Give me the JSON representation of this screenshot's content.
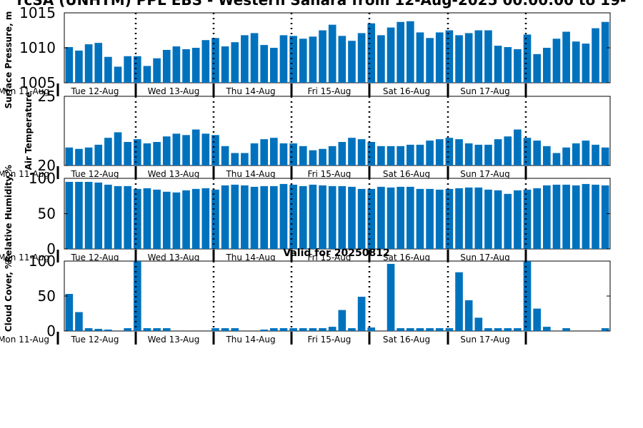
{
  "figure": {
    "title": "rcSA (UNHTM) PPL EBS  - Western Sahara from 12-Aug-2025 00:00:00 to 19-",
    "bottom_label": "Valid for 20250812"
  },
  "colors": {
    "bar": "#0072bd",
    "axis": "#000000"
  },
  "chart_data": [
    {
      "type": "bar",
      "ylabel": "Surface Pressure, m",
      "ylim": [
        1005,
        1015
      ],
      "yticks": [
        1005,
        1010,
        1015
      ],
      "ytick_labels": [
        "1005",
        "1010",
        "1015"
      ],
      "xtick_labels": [
        "Mon 11-Aug",
        "Tue 12-Aug",
        "Wed 13-Aug",
        "Thu 14-Aug",
        "Fri 15-Aug",
        "Sat 16-Aug",
        "Sun 17-Aug"
      ],
      "values": [
        1010.1,
        1009.6,
        1010.5,
        1010.7,
        1008.7,
        1007.3,
        1008.8,
        1008.8,
        1007.4,
        1008.5,
        1009.7,
        1010.2,
        1009.8,
        1010.0,
        1011.1,
        1011.4,
        1010.2,
        1010.8,
        1011.8,
        1012.1,
        1010.4,
        1010.0,
        1011.8,
        1011.7,
        1011.3,
        1011.6,
        1012.5,
        1013.3,
        1011.7,
        1011.0,
        1012.1,
        1013.5,
        1011.8,
        1012.9,
        1013.7,
        1013.8,
        1012.2,
        1011.4,
        1012.2,
        1012.5,
        1011.8,
        1012.1,
        1012.5,
        1012.5,
        1010.3,
        1010.1,
        1009.8,
        1011.9,
        1009.1,
        1010.0,
        1011.3,
        1012.3,
        1010.9,
        1010.6,
        1012.8,
        1013.7
      ]
    },
    {
      "type": "bar",
      "ylabel": "Air Temperature",
      "ylim": [
        20,
        25
      ],
      "yticks": [
        20,
        25
      ],
      "ytick_labels": [
        "20",
        "25"
      ],
      "xtick_labels": [
        "Mon 11-Aug",
        "Tue 12-Aug",
        "Wed 13-Aug",
        "Thu 14-Aug",
        "Fri 15-Aug",
        "Sat 16-Aug",
        "Sun 17-Aug"
      ],
      "values": [
        21.3,
        21.2,
        21.3,
        21.5,
        22.0,
        22.4,
        21.7,
        21.9,
        21.6,
        21.7,
        22.1,
        22.3,
        22.2,
        22.6,
        22.3,
        22.2,
        21.4,
        20.9,
        20.9,
        21.6,
        21.9,
        22.0,
        21.6,
        21.6,
        21.4,
        21.1,
        21.2,
        21.4,
        21.7,
        22.0,
        21.9,
        21.7,
        21.4,
        21.4,
        21.4,
        21.5,
        21.5,
        21.8,
        21.9,
        22.0,
        21.9,
        21.6,
        21.5,
        21.5,
        21.9,
        22.1,
        22.6,
        22.0,
        21.8,
        21.4,
        20.9,
        21.3,
        21.6,
        21.8,
        21.5,
        21.3
      ]
    },
    {
      "type": "bar",
      "ylabel": "Relative Humidity,%",
      "ylim": [
        0,
        100
      ],
      "yticks": [
        0,
        50,
        100
      ],
      "ytick_labels": [
        "0",
        "50",
        "100"
      ],
      "xtick_labels": [
        "Mon 11-Aug",
        "Tue 12-Aug",
        "Wed 13-Aug",
        "Thu 14-Aug",
        "Fri 15-Aug",
        "Sat 16-Aug",
        "Sun 17-Aug"
      ],
      "values": [
        95,
        95,
        95,
        94,
        91,
        89,
        89,
        85,
        86,
        84,
        81,
        80,
        83,
        85,
        86,
        84,
        90,
        91,
        90,
        88,
        89,
        89,
        92,
        91,
        89,
        91,
        90,
        89,
        89,
        88,
        85,
        85,
        88,
        87,
        88,
        88,
        85,
        85,
        84,
        85,
        86,
        87,
        87,
        84,
        83,
        78,
        83,
        84,
        86,
        90,
        91,
        91,
        90,
        92,
        91,
        90
      ]
    },
    {
      "type": "bar",
      "ylabel": "Cloud Cover, %",
      "ylim": [
        0,
        100
      ],
      "yticks": [
        0,
        50,
        100
      ],
      "ytick_labels": [
        "0",
        "50",
        "100"
      ],
      "xtick_labels": [
        "Mon 11-Aug",
        "Tue 12-Aug",
        "Wed 13-Aug",
        "Thu 14-Aug",
        "Fri 15-Aug",
        "Sat 16-Aug",
        "Sun 17-Aug"
      ],
      "values": [
        53,
        27,
        4,
        3,
        2,
        0,
        4,
        100,
        4,
        4,
        4,
        0,
        0,
        0,
        0,
        4,
        4,
        4,
        0,
        0,
        2,
        4,
        4,
        4,
        4,
        4,
        4,
        6,
        30,
        4,
        49,
        5,
        0,
        96,
        4,
        4,
        4,
        4,
        4,
        4,
        84,
        44,
        19,
        4,
        4,
        4,
        4,
        100,
        32,
        6,
        0,
        4,
        0,
        0,
        0,
        4
      ]
    }
  ]
}
